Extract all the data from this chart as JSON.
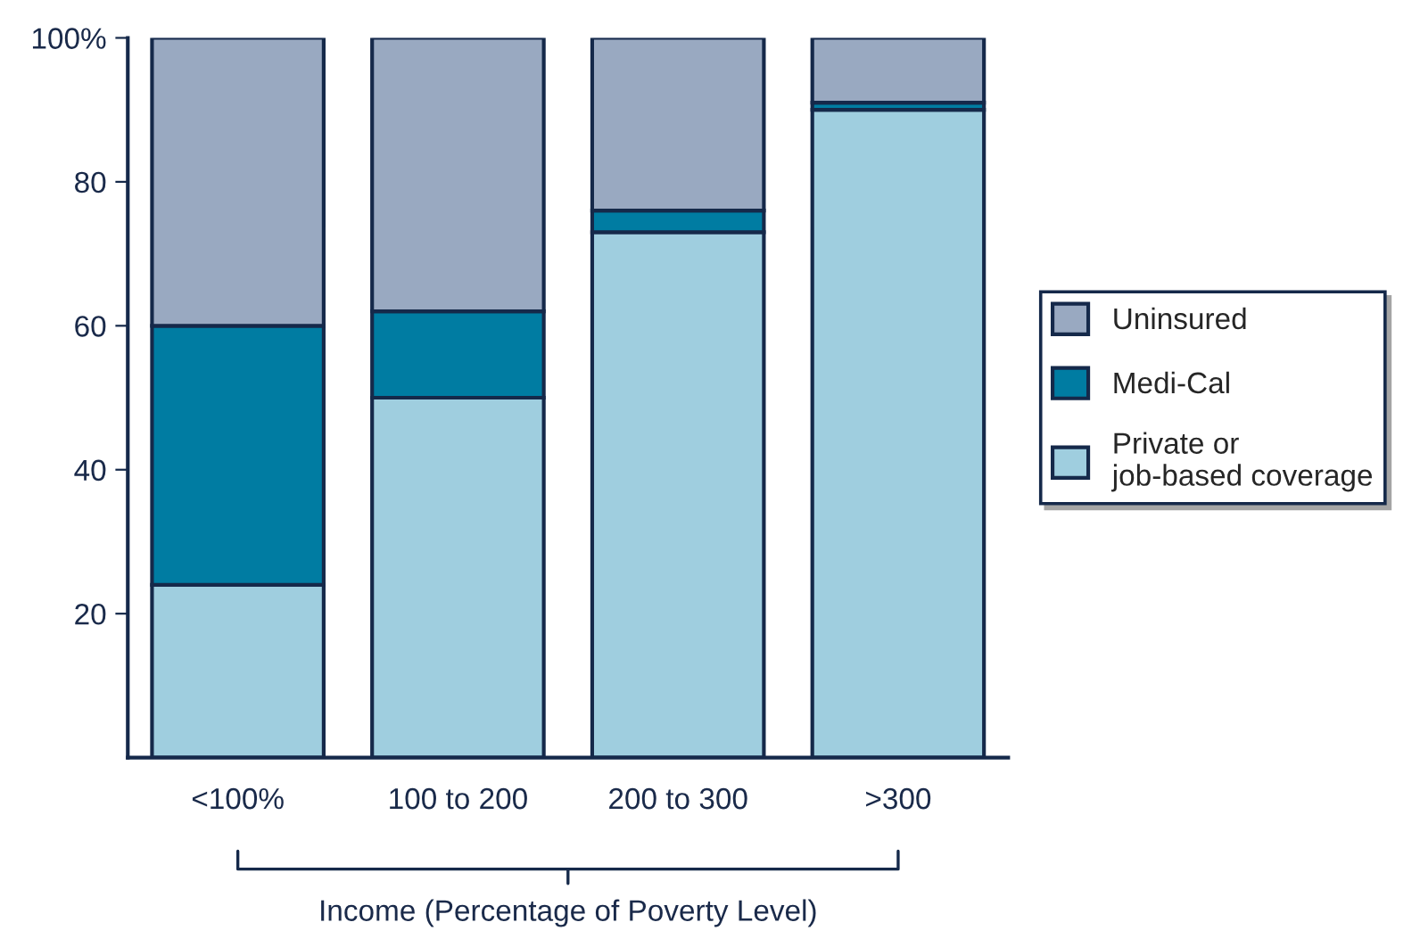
{
  "chart_data": {
    "type": "bar",
    "stacked": true,
    "xlabel": "Income (Percentage of Poverty Level)",
    "categories": [
      "<100%",
      "100 to 200",
      "200 to 300",
      ">300"
    ],
    "series": [
      {
        "name": "Private or\njob-based coverage",
        "color": "#9fcedf",
        "values": [
          24,
          50,
          73,
          90
        ]
      },
      {
        "name": "Medi-Cal",
        "color": "#007ca2",
        "values": [
          36,
          12,
          3,
          1
        ]
      },
      {
        "name": "Uninsured",
        "color": "#99a9c1",
        "values": [
          40,
          38,
          24,
          9
        ]
      }
    ],
    "ylim": [
      0,
      100
    ],
    "yticks": [
      20,
      40,
      60,
      {
        "value": 80,
        "label": "80"
      },
      {
        "value": 100,
        "label": "100%"
      }
    ],
    "grid": false,
    "legend": "right"
  }
}
